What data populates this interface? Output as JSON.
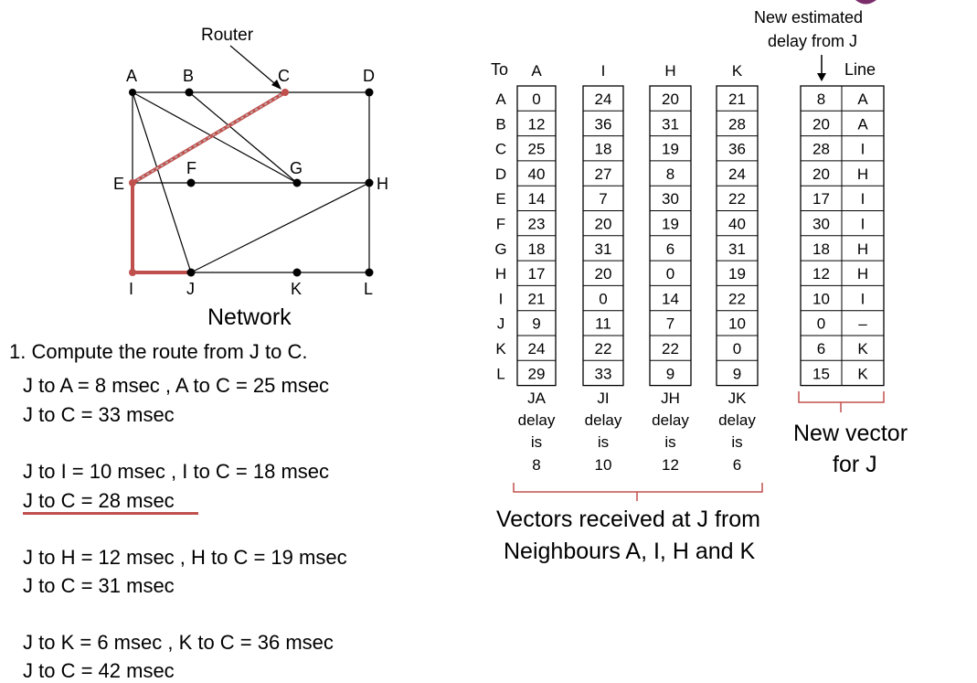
{
  "network": {
    "caption": "Network",
    "router_label": "Router",
    "nodes": [
      "A",
      "B",
      "C",
      "D",
      "E",
      "F",
      "G",
      "H",
      "I",
      "J",
      "K",
      "L"
    ]
  },
  "question": "1. Compute the route from J to C.",
  "calc_lines": [
    "J to  A = 8 msec , A to C = 25 msec",
    "J to C = 33 msec",
    "J to  I = 10 msec , I to C = 18 msec",
    "J to C = 28 msec",
    "J to  H = 12 msec , H to C = 19 msec",
    "J to C = 31 msec",
    "J to  K = 6 msec , K to C = 36 msec",
    "J to C = 42 msec"
  ],
  "table": {
    "to_label": "To",
    "row_labels": [
      "A",
      "B",
      "C",
      "D",
      "E",
      "F",
      "G",
      "H",
      "I",
      "J",
      "K",
      "L"
    ],
    "neighbors": [
      {
        "name": "A",
        "values": [
          "0",
          "12",
          "25",
          "40",
          "14",
          "23",
          "18",
          "17",
          "21",
          "9",
          "24",
          "29"
        ],
        "foot": [
          "JA",
          "delay",
          "is",
          "8"
        ]
      },
      {
        "name": "I",
        "values": [
          "24",
          "36",
          "18",
          "27",
          "7",
          "20",
          "31",
          "20",
          "0",
          "11",
          "22",
          "33"
        ],
        "foot": [
          "JI",
          "delay",
          "is",
          "10"
        ]
      },
      {
        "name": "H",
        "values": [
          "20",
          "31",
          "19",
          "8",
          "30",
          "19",
          "6",
          "0",
          "14",
          "7",
          "22",
          "9"
        ],
        "foot": [
          "JH",
          "delay",
          "is",
          "12"
        ]
      },
      {
        "name": "K",
        "values": [
          "21",
          "28",
          "36",
          "24",
          "22",
          "40",
          "31",
          "19",
          "22",
          "10",
          "0",
          "9"
        ],
        "foot": [
          "JK",
          "delay",
          "is",
          "6"
        ]
      }
    ],
    "new_est_title_1": "New estimated",
    "new_est_title_2": "delay from J",
    "line_label": "Line",
    "new_delays": [
      "8",
      "20",
      "28",
      "20",
      "17",
      "30",
      "18",
      "12",
      "10",
      "0",
      "6",
      "15"
    ],
    "new_lines": [
      "A",
      "A",
      "I",
      "H",
      "I",
      "I",
      "H",
      "H",
      "I",
      "–",
      "K",
      "K"
    ],
    "vectors_caption_1": "Vectors received at J from",
    "vectors_caption_2": "Neighbours A, I, H and K",
    "new_vector_caption_1": "New vector",
    "new_vector_caption_2": "for J"
  },
  "colors": {
    "highlight": "#c0504d"
  }
}
